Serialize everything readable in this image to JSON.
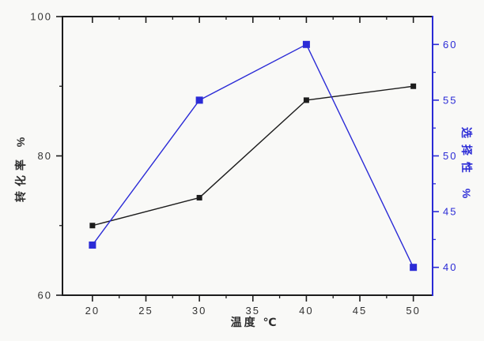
{
  "chart_data": {
    "type": "line",
    "title": "",
    "xlabel": "温度 ℃",
    "ylabel_left": "转化率 %",
    "ylabel_right": "选择性 %",
    "x": [
      20,
      30,
      40,
      50
    ],
    "series": [
      {
        "name": "conversion",
        "axis": "left",
        "color": "#1c1c1c",
        "marker": "square",
        "marker_size": 7,
        "values": [
          70,
          74,
          88,
          90
        ]
      },
      {
        "name": "selectivity",
        "axis": "right",
        "color": "#2b2bd6",
        "marker": "square",
        "marker_size": 9,
        "values": [
          42,
          55,
          60,
          40
        ]
      }
    ],
    "xlim": [
      17.2,
      51.8
    ],
    "ylim_left": [
      60,
      100
    ],
    "ylim_right": [
      37.5,
      62.5
    ],
    "x_major_ticks": [
      20,
      25,
      30,
      35,
      40,
      45,
      50
    ],
    "x_minor_ticks": [
      22.5,
      27.5,
      32.5,
      37.5,
      42.5,
      47.5
    ],
    "left_major_ticks": [
      60,
      80,
      100
    ],
    "left_minor_ticks": [
      70,
      90
    ],
    "right_major_ticks": [
      40,
      45,
      50,
      55,
      60
    ],
    "right_minor_ticks": [
      42.5,
      47.5,
      52.5,
      57.5
    ],
    "grid": false,
    "legend": "none"
  },
  "colors": {
    "background": "#f9f9f7",
    "axis_black": "#1c1c1c",
    "axis_blue": "#2b2bd6",
    "tick_text": "#333333"
  }
}
